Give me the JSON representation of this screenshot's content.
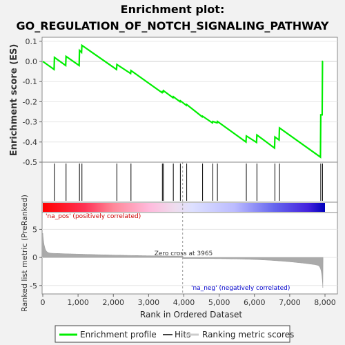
{
  "chart_data": {
    "type": "line",
    "title_line1": "Enrichment plot:",
    "title_line2": "GO_REGULATION_OF_NOTCH_SIGNALING_PATHWAY",
    "es_ylabel": "Enrichment score (ES)",
    "metric_ylabel": "Ranked list metric (PreRanked)",
    "xlabel": "Rank in Ordered Dataset",
    "xlim": [
      0,
      8000
    ],
    "es_ylim": [
      -0.5,
      0.12
    ],
    "metric_ylim": [
      -6.5,
      8
    ],
    "x_ticks": [
      0,
      1000,
      2000,
      3000,
      4000,
      5000,
      6000,
      7000,
      8000
    ],
    "x_tick_labels": [
      "0",
      "1,000",
      "2,000",
      "3,000",
      "4,000",
      "5,000",
      "6,000",
      "7,000",
      "8,000"
    ],
    "es_ticks": [
      0.1,
      0.0,
      -0.1,
      -0.2,
      -0.3,
      -0.4,
      -0.5
    ],
    "es_tick_labels": [
      "0.1",
      "0.0",
      "-0.1",
      "-0.2",
      "-0.3",
      "-0.4",
      "-0.5"
    ],
    "metric_ticks": [
      5,
      0,
      -5
    ],
    "metric_tick_labels": [
      "5",
      "0",
      "-5"
    ],
    "hits": [
      330,
      660,
      1040,
      1110,
      2100,
      2500,
      3390,
      3420,
      3700,
      3900,
      4080,
      4530,
      4820,
      4950,
      5770,
      6070,
      6580,
      6710,
      7880,
      7930
    ],
    "enrichment_profile": {
      "x": [
        0,
        320,
        330,
        650,
        660,
        1030,
        1040,
        1100,
        1110,
        2090,
        2100,
        2490,
        2500,
        3380,
        3390,
        3410,
        3420,
        3690,
        3700,
        3890,
        3900,
        4070,
        4080,
        4520,
        4530,
        4810,
        4820,
        4940,
        4950,
        5760,
        5770,
        6060,
        6070,
        6570,
        6580,
        6700,
        6710,
        7870,
        7880,
        7920,
        7930,
        7945
      ],
      "y": [
        0.0,
        -0.04,
        0.02,
        -0.02,
        0.025,
        -0.02,
        0.055,
        0.045,
        0.08,
        -0.04,
        -0.015,
        -0.06,
        -0.045,
        -0.155,
        -0.15,
        -0.152,
        -0.145,
        -0.18,
        -0.175,
        -0.2,
        -0.195,
        -0.218,
        -0.214,
        -0.275,
        -0.272,
        -0.305,
        -0.298,
        -0.305,
        -0.298,
        -0.4,
        -0.37,
        -0.402,
        -0.365,
        -0.43,
        -0.375,
        -0.39,
        -0.33,
        -0.475,
        -0.265,
        -0.265,
        0.0,
        0.0
      ]
    },
    "zero_cross_rank": 3965,
    "zero_cross_label": "Zero cross at 3965",
    "pos_label": "'na_pos' (positively correlated)",
    "neg_label": "'na_neg' (negatively correlated)",
    "colors": {
      "profile": "#00ee00",
      "hits": "#000000",
      "pos_label": "#cc0000",
      "neg_label": "#0000cc",
      "metric_fill": "#aaaaaa"
    }
  },
  "legend": {
    "items": [
      {
        "label": "Enrichment profile",
        "color": "#00ee00"
      },
      {
        "label": "Hits",
        "color": "#000000"
      },
      {
        "label": "Ranking metric scores",
        "color": "#cccccc"
      }
    ]
  }
}
